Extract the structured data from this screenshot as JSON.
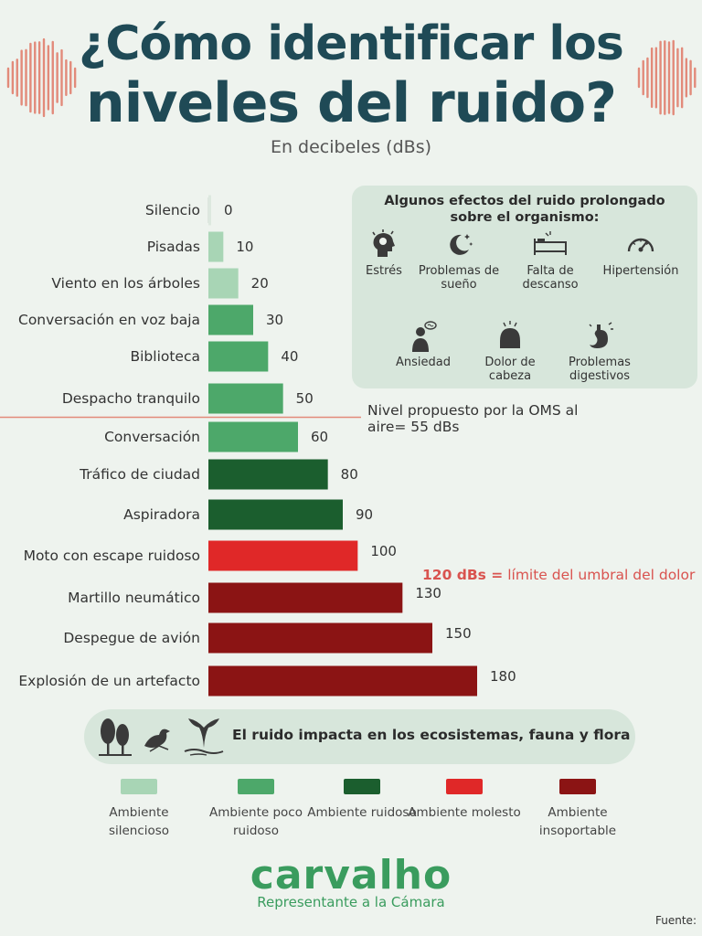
{
  "header": {
    "title_line1": "¿Cómo identificar los",
    "title_line2": "niveles del ruido?",
    "subtitle": "En decibeles (dBs)"
  },
  "chart_data": {
    "type": "bar",
    "orientation": "horizontal",
    "categories": [
      "Silencio",
      "Pisadas",
      "Viento en los árboles",
      "Conversación en voz baja",
      "Biblioteca",
      "Despacho tranquilo",
      "Conversación",
      "Tráfico de ciudad",
      "Aspiradora",
      "Moto con escape ruidoso",
      "Martillo neumático",
      "Despegue de avión",
      "Explosión de un artefacto"
    ],
    "values": [
      0,
      10,
      20,
      30,
      40,
      50,
      60,
      80,
      90,
      100,
      130,
      150,
      180
    ],
    "levels": [
      "silencioso",
      "silencioso",
      "silencioso",
      "poco_ruidoso",
      "poco_ruidoso",
      "poco_ruidoso",
      "poco_ruidoso",
      "ruidoso",
      "ruidoso",
      "molesto",
      "insoportable",
      "insoportable",
      "insoportable"
    ],
    "xlim": [
      0,
      180
    ],
    "reference_line_after": "Despacho tranquilo",
    "grid": false
  },
  "colors": {
    "silencioso": "#a8d5b5",
    "poco_ruidoso": "#4da86a",
    "ruidoso": "#1b5e2e",
    "molesto": "#e02828",
    "insoportable": "#8b1414",
    "title": "#1f4a56",
    "wave": "#e28a7a",
    "reference_line": "#e28a7a"
  },
  "effects": {
    "title": "Algunos efectos del ruido prolongado sobre el organismo:",
    "items": [
      {
        "label": "Estrés",
        "icon": "stressed-head-icon"
      },
      {
        "label": "Problemas de sueño",
        "icon": "moon-stars-icon"
      },
      {
        "label": "Falta de descanso",
        "icon": "bed-icon"
      },
      {
        "label": "Hipertensión",
        "icon": "gauge-icon"
      },
      {
        "label": "Ansiedad",
        "icon": "anxious-person-icon"
      },
      {
        "label": "Dolor de cabeza",
        "icon": "headache-icon"
      },
      {
        "label": "Problemas digestivos",
        "icon": "stomach-icon"
      }
    ]
  },
  "notes": {
    "oms": "Nivel propuesto por la OMS al aire= 55 dBs",
    "pain_strong": "120 dBs =",
    "pain_rest": " límite del umbral del dolor"
  },
  "ecosystem": {
    "text": "El ruido impacta en los ecosistemas, fauna y flora",
    "icons": [
      "trees-icon",
      "bird-icon",
      "whale-tail-icon"
    ]
  },
  "legend": [
    {
      "label": "Ambiente silencioso",
      "key": "silencioso"
    },
    {
      "label": "Ambiente poco ruidoso",
      "key": "poco_ruidoso"
    },
    {
      "label": "Ambiente ruidoso",
      "key": "ruidoso"
    },
    {
      "label": "Ambiente molesto",
      "key": "molesto"
    },
    {
      "label": "Ambiente insoportable",
      "key": "insoportable"
    }
  ],
  "footer": {
    "brand": "carvalho",
    "tagline": "Representante a la Cámara",
    "source": "Fuente:"
  }
}
